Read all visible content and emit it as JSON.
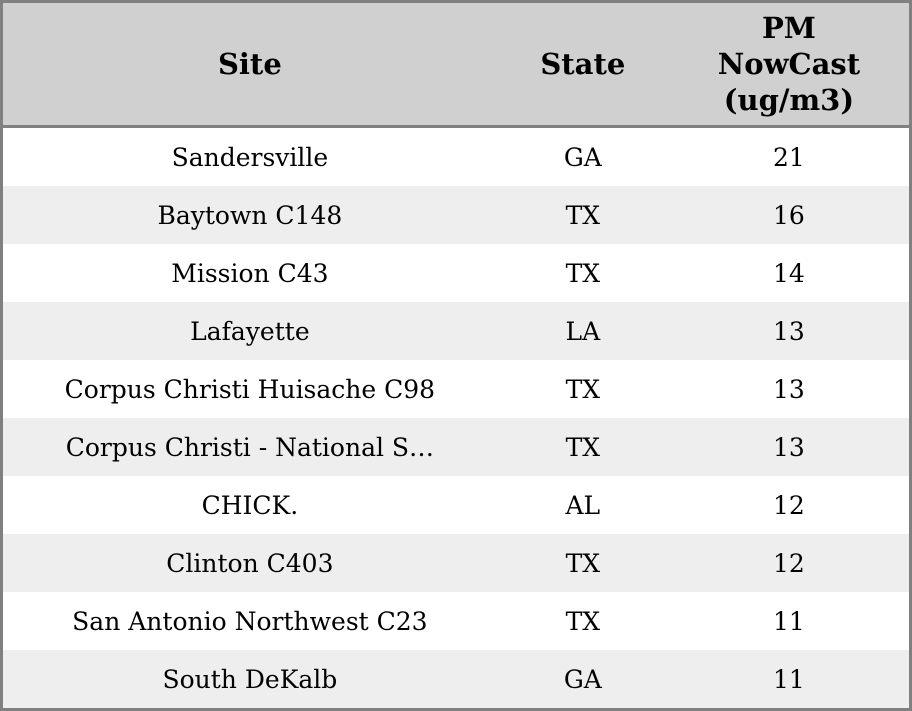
{
  "chart_data": {
    "type": "table",
    "title": "",
    "columns": [
      "Site",
      "State",
      "PM NowCast (ug/m3)"
    ],
    "rows": [
      [
        "Sandersville",
        "GA",
        21
      ],
      [
        "Baytown C148",
        "TX",
        16
      ],
      [
        "Mission C43",
        "TX",
        14
      ],
      [
        "Lafayette",
        "LA",
        13
      ],
      [
        "Corpus Christi Huisache C98",
        "TX",
        13
      ],
      [
        "Corpus Christi - National S…",
        "TX",
        13
      ],
      [
        "CHICK.",
        "AL",
        12
      ],
      [
        "Clinton C403",
        "TX",
        12
      ],
      [
        "San Antonio Northwest C23",
        "TX",
        11
      ],
      [
        "South DeKalb",
        "GA",
        11
      ]
    ],
    "layout": {
      "striped_rows": true,
      "header_position": "top",
      "value_alignment": "center"
    }
  },
  "table": {
    "header_display": {
      "site": "Site",
      "state": "State",
      "pm": "PM\nNowCast\n(ug/m3)"
    },
    "colors": {
      "header_bg": "#d0d0d0",
      "border": "#808080",
      "row_stripe": "#eeeeee",
      "row_plain": "#ffffff",
      "text": "#000000"
    }
  }
}
